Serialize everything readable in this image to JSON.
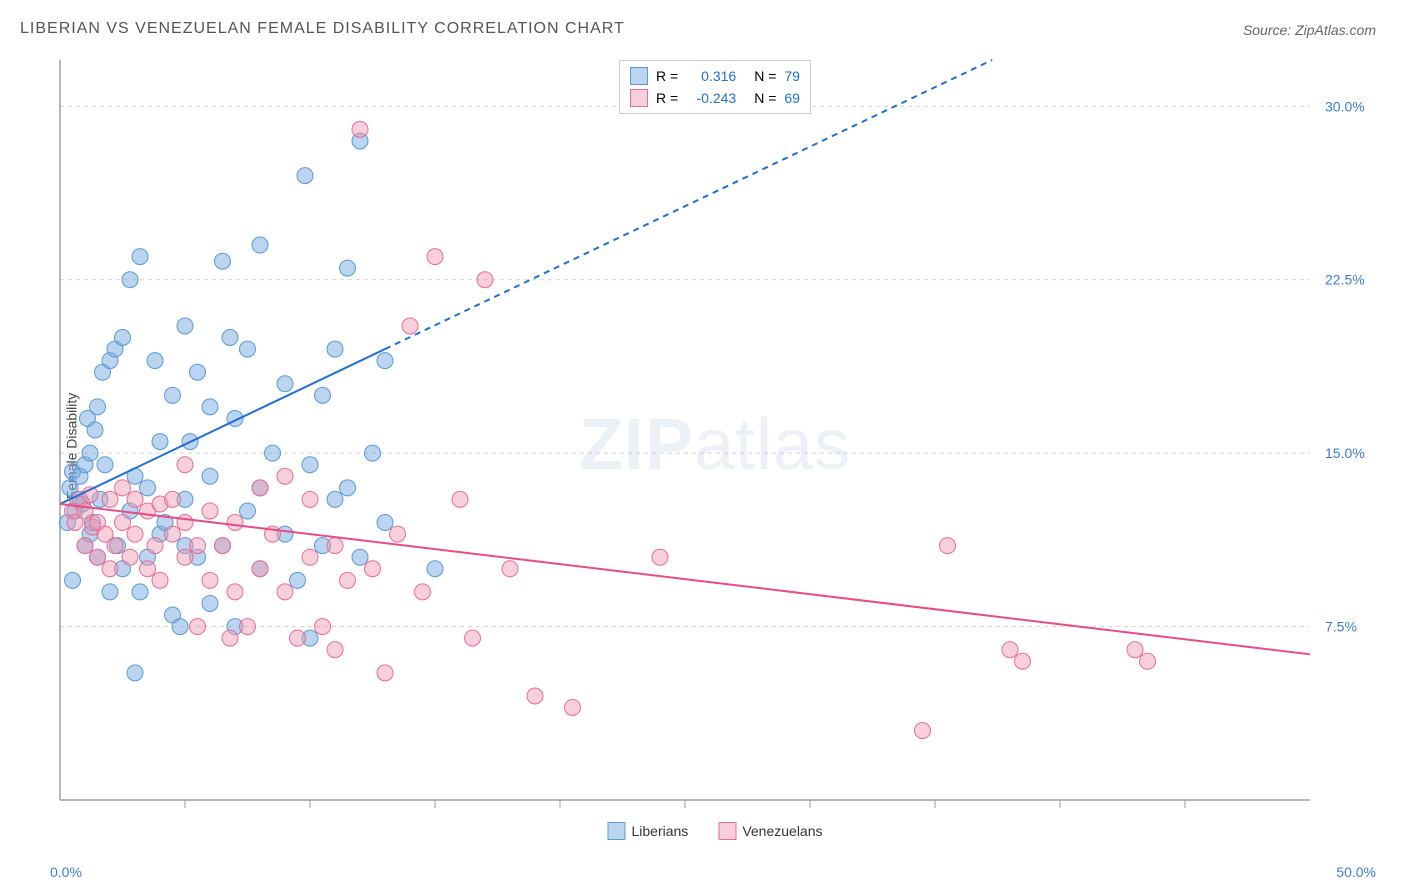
{
  "title": "LIBERIAN VS VENEZUELAN FEMALE DISABILITY CORRELATION CHART",
  "source": "Source: ZipAtlas.com",
  "ylabel": "Female Disability",
  "watermark_parts": [
    "ZIP",
    "atlas"
  ],
  "chart": {
    "type": "scatter",
    "xlim": [
      0,
      50
    ],
    "ylim": [
      0,
      32
    ],
    "xticks_major": [
      0,
      50
    ],
    "xticks_minor": [
      5,
      10,
      15,
      20,
      25,
      30,
      35,
      40,
      45
    ],
    "xtick_labels": [
      "0.0%",
      "50.0%"
    ],
    "y_gridlines": [
      7.5,
      15.0,
      22.5,
      30.0
    ],
    "y_grid_labels": [
      "7.5%",
      "15.0%",
      "22.5%",
      "30.0%"
    ],
    "grid_color": "#d0d0d0",
    "axis_color": "#9aa0a6",
    "background_color": "#ffffff",
    "ylabel_color": "#3b7dd8",
    "series": [
      {
        "name": "Liberians",
        "fill": "rgba(120,170,225,0.5)",
        "stroke": "#5a9bd5",
        "marker_r": 8,
        "r": 0.316,
        "n": 79,
        "trend": {
          "x1": 0,
          "y1": 12.8,
          "x2_solid": 13,
          "y2_solid": 19.5,
          "x2_dash": 47,
          "y2_dash": 37,
          "color": "#1f6fd6",
          "width": 2
        },
        "points": [
          [
            0.3,
            12.0
          ],
          [
            0.4,
            13.5
          ],
          [
            0.5,
            14.2
          ],
          [
            0.6,
            12.5
          ],
          [
            0.7,
            13.0
          ],
          [
            0.8,
            14.0
          ],
          [
            0.9,
            12.8
          ],
          [
            1.0,
            14.5
          ],
          [
            1.0,
            11.0
          ],
          [
            1.1,
            16.5
          ],
          [
            1.2,
            11.5
          ],
          [
            1.2,
            15.0
          ],
          [
            1.3,
            12.0
          ],
          [
            1.4,
            16.0
          ],
          [
            1.5,
            10.5
          ],
          [
            1.5,
            17.0
          ],
          [
            1.6,
            13.0
          ],
          [
            1.7,
            18.5
          ],
          [
            1.8,
            14.5
          ],
          [
            2.0,
            19.0
          ],
          [
            2.0,
            9.0
          ],
          [
            2.2,
            19.5
          ],
          [
            2.3,
            11.0
          ],
          [
            2.5,
            20.0
          ],
          [
            2.5,
            10.0
          ],
          [
            2.8,
            22.5
          ],
          [
            3.0,
            5.5
          ],
          [
            3.0,
            14.0
          ],
          [
            3.2,
            23.5
          ],
          [
            3.5,
            13.5
          ],
          [
            3.5,
            10.5
          ],
          [
            3.8,
            19.0
          ],
          [
            4.0,
            15.5
          ],
          [
            4.0,
            11.5
          ],
          [
            4.2,
            12.0
          ],
          [
            4.5,
            17.5
          ],
          [
            4.5,
            8.0
          ],
          [
            5.0,
            20.5
          ],
          [
            5.0,
            13.0
          ],
          [
            5.0,
            11.0
          ],
          [
            5.2,
            15.5
          ],
          [
            5.5,
            18.5
          ],
          [
            5.5,
            10.5
          ],
          [
            6.0,
            14.0
          ],
          [
            6.0,
            8.5
          ],
          [
            6.0,
            17.0
          ],
          [
            6.5,
            23.3
          ],
          [
            6.5,
            11.0
          ],
          [
            7.0,
            16.5
          ],
          [
            7.0,
            7.5
          ],
          [
            7.5,
            19.5
          ],
          [
            7.5,
            12.5
          ],
          [
            8.0,
            24.0
          ],
          [
            8.0,
            10.0
          ],
          [
            8.0,
            13.5
          ],
          [
            8.5,
            15.0
          ],
          [
            9.0,
            11.5
          ],
          [
            9.0,
            18.0
          ],
          [
            9.5,
            9.5
          ],
          [
            9.8,
            27.0
          ],
          [
            10.0,
            14.5
          ],
          [
            10.0,
            7.0
          ],
          [
            10.5,
            17.5
          ],
          [
            10.5,
            11.0
          ],
          [
            11.0,
            19.5
          ],
          [
            11.0,
            13.0
          ],
          [
            11.5,
            23.0
          ],
          [
            12.0,
            10.5
          ],
          [
            12.0,
            28.5
          ],
          [
            12.5,
            15.0
          ],
          [
            13.0,
            19.0
          ],
          [
            13.0,
            12.0
          ],
          [
            15.0,
            10.0
          ],
          [
            4.8,
            7.5
          ],
          [
            3.2,
            9.0
          ],
          [
            6.8,
            20.0
          ],
          [
            11.5,
            13.5
          ],
          [
            2.8,
            12.5
          ],
          [
            0.5,
            9.5
          ]
        ]
      },
      {
        "name": "Venezuelans",
        "fill": "rgba(240,150,175,0.45)",
        "stroke": "#e86d95",
        "marker_r": 8,
        "r": -0.243,
        "n": 69,
        "trend": {
          "x1": 0,
          "y1": 12.8,
          "x2_solid": 50,
          "y2_solid": 6.3,
          "color": "#e94b89",
          "width": 2
        },
        "points": [
          [
            0.5,
            12.5
          ],
          [
            0.6,
            12.0
          ],
          [
            0.8,
            13.0
          ],
          [
            1.0,
            11.0
          ],
          [
            1.0,
            12.5
          ],
          [
            1.2,
            13.2
          ],
          [
            1.3,
            11.8
          ],
          [
            1.5,
            12.0
          ],
          [
            1.5,
            10.5
          ],
          [
            1.8,
            11.5
          ],
          [
            2.0,
            13.0
          ],
          [
            2.0,
            10.0
          ],
          [
            2.2,
            11.0
          ],
          [
            2.5,
            13.5
          ],
          [
            2.5,
            12.0
          ],
          [
            2.8,
            10.5
          ],
          [
            3.0,
            11.5
          ],
          [
            3.0,
            13.0
          ],
          [
            3.5,
            10.0
          ],
          [
            3.5,
            12.5
          ],
          [
            3.8,
            11.0
          ],
          [
            4.0,
            12.8
          ],
          [
            4.0,
            9.5
          ],
          [
            4.5,
            11.5
          ],
          [
            4.5,
            13.0
          ],
          [
            5.0,
            14.5
          ],
          [
            5.0,
            10.5
          ],
          [
            5.0,
            12.0
          ],
          [
            5.5,
            11.0
          ],
          [
            5.5,
            7.5
          ],
          [
            6.0,
            9.5
          ],
          [
            6.0,
            12.5
          ],
          [
            6.5,
            11.0
          ],
          [
            6.8,
            7.0
          ],
          [
            7.0,
            12.0
          ],
          [
            7.0,
            9.0
          ],
          [
            7.5,
            7.5
          ],
          [
            8.0,
            13.5
          ],
          [
            8.0,
            10.0
          ],
          [
            8.5,
            11.5
          ],
          [
            9.0,
            9.0
          ],
          [
            9.0,
            14.0
          ],
          [
            9.5,
            7.0
          ],
          [
            10.0,
            10.5
          ],
          [
            10.0,
            13.0
          ],
          [
            10.5,
            7.5
          ],
          [
            11.0,
            11.0
          ],
          [
            11.5,
            9.5
          ],
          [
            12.0,
            29.0
          ],
          [
            12.5,
            10.0
          ],
          [
            13.0,
            5.5
          ],
          [
            13.5,
            11.5
          ],
          [
            14.0,
            20.5
          ],
          [
            14.5,
            9.0
          ],
          [
            15.0,
            23.5
          ],
          [
            16.0,
            13.0
          ],
          [
            17.0,
            22.5
          ],
          [
            18.0,
            10.0
          ],
          [
            19.0,
            4.5
          ],
          [
            20.5,
            4.0
          ],
          [
            24.0,
            10.5
          ],
          [
            35.5,
            11.0
          ],
          [
            38.0,
            6.5
          ],
          [
            38.5,
            6.0
          ],
          [
            43.0,
            6.5
          ],
          [
            43.5,
            6.0
          ],
          [
            34.5,
            3.0
          ],
          [
            16.5,
            7.0
          ],
          [
            11.0,
            6.5
          ]
        ]
      }
    ],
    "legend_top_labels": {
      "r_label": "R =",
      "n_label": "N ="
    }
  }
}
